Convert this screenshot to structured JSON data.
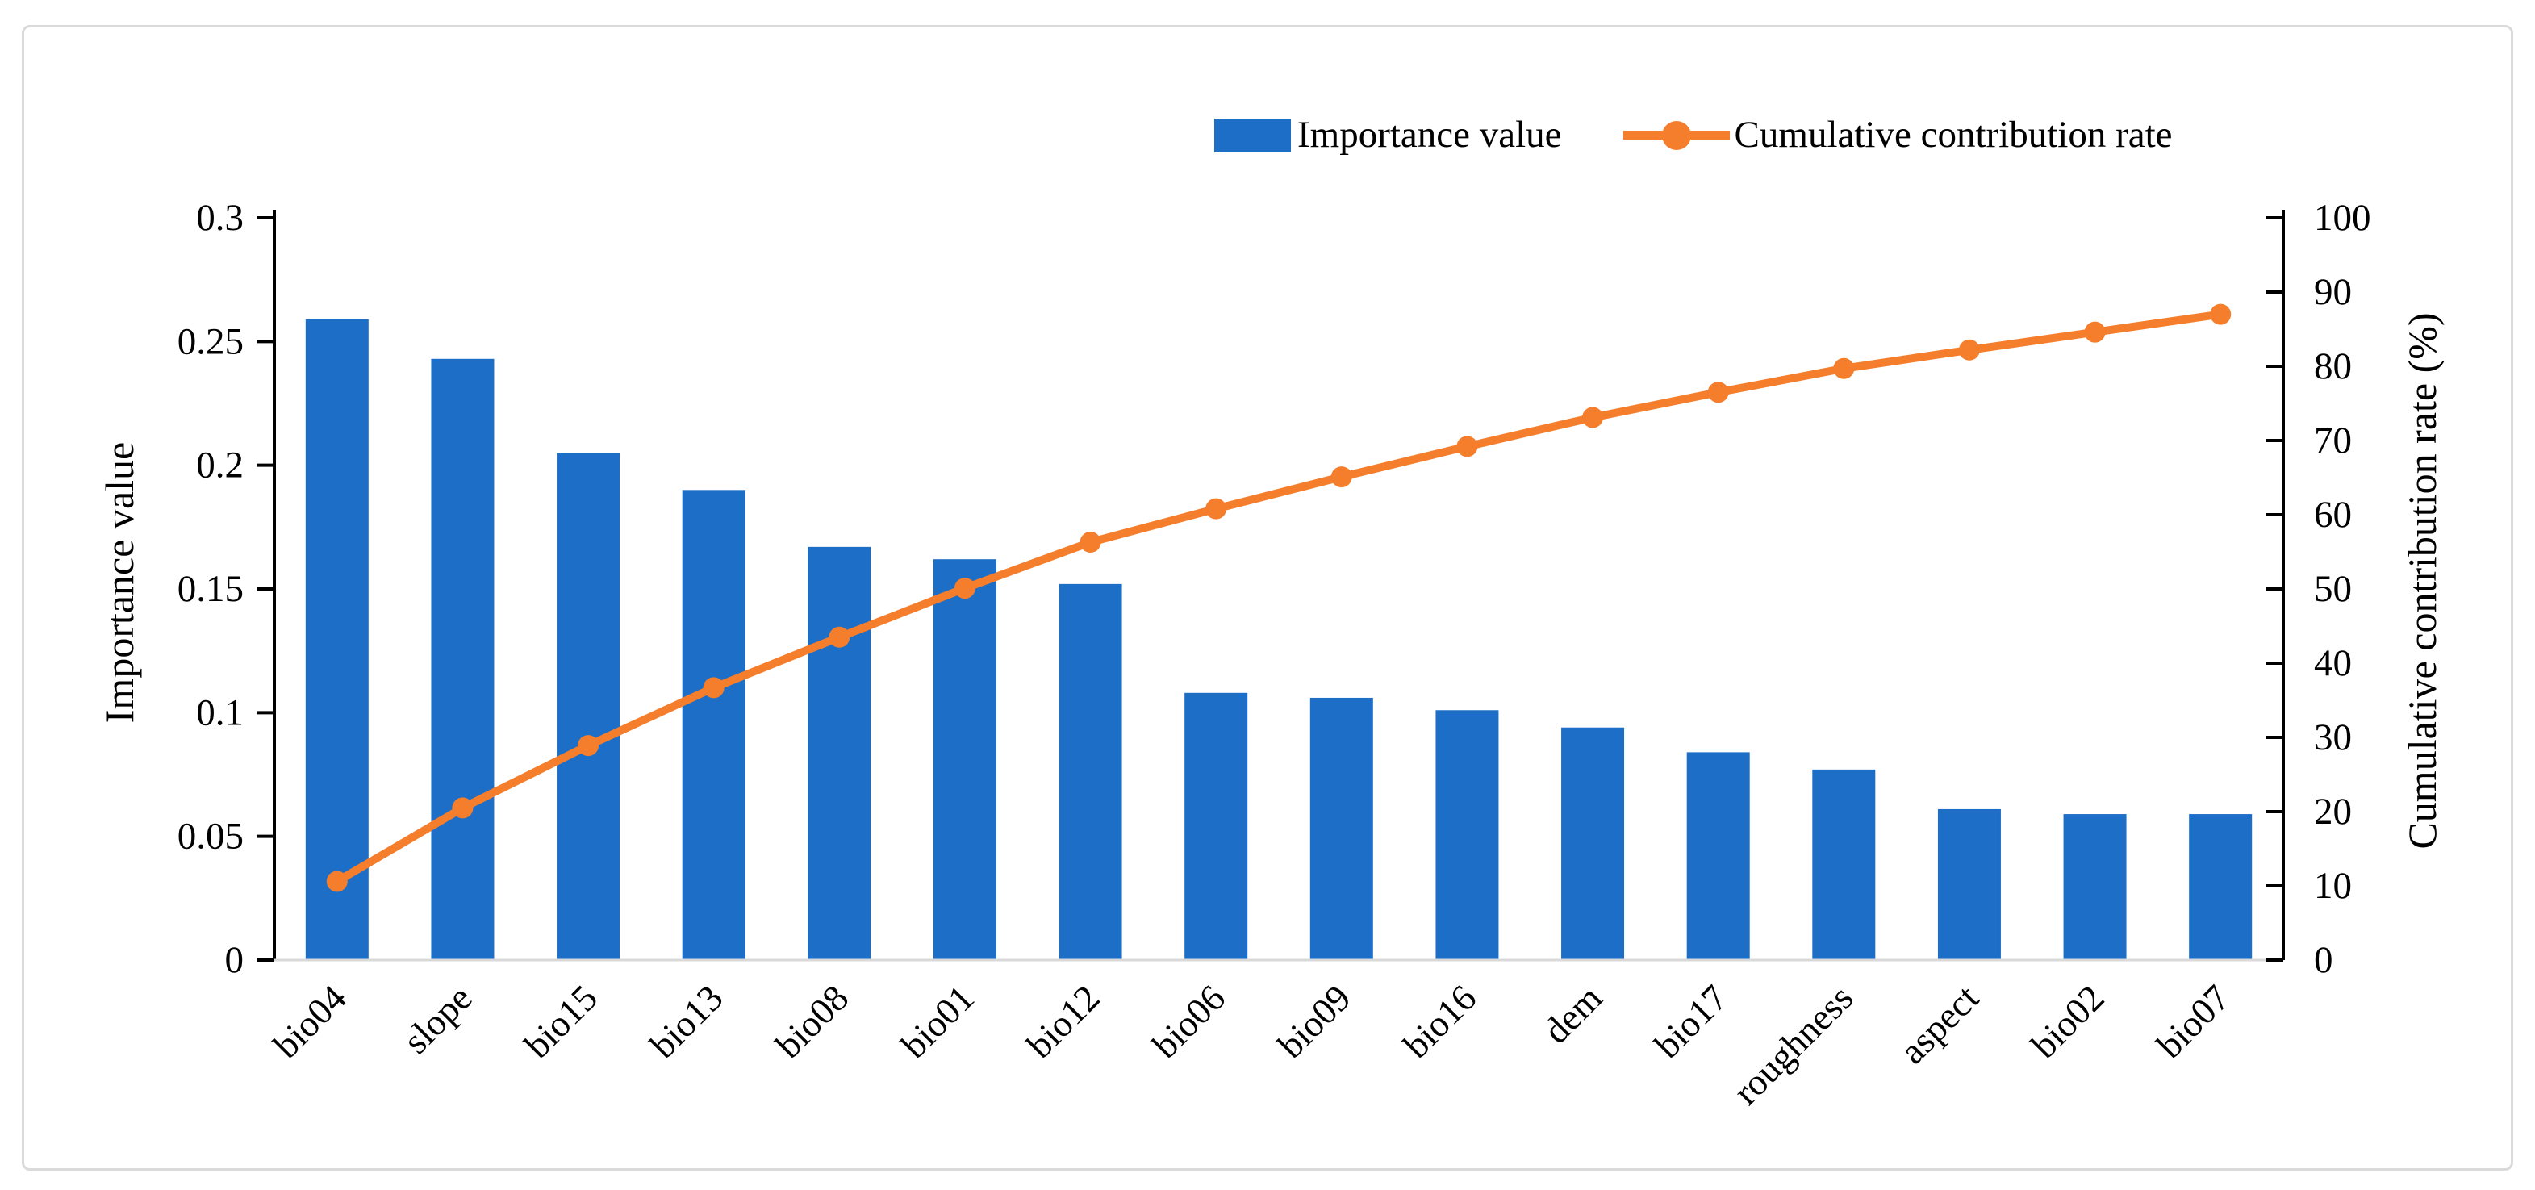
{
  "figure": {
    "background": "#ffffff",
    "frame_border_color": "#dadada",
    "axis_color": "#000000",
    "baseline_color": "#d9d9d9"
  },
  "chart_data": {
    "type": "bar",
    "subtype": "pareto-combo (bar + cumulative line)",
    "title": "",
    "categories": [
      "bio04",
      "slope",
      "bio15",
      "bio13",
      "bio08",
      "bio01",
      "bio12",
      "bio06",
      "bio09",
      "bio16",
      "dem",
      "bio17",
      "roughness",
      "aspect",
      "bio02",
      "bio07"
    ],
    "series": [
      {
        "name": "Importance value",
        "type": "bar",
        "axis": "left",
        "color": "#1d6ec6",
        "values": [
          0.259,
          0.243,
          0.205,
          0.19,
          0.167,
          0.162,
          0.152,
          0.108,
          0.106,
          0.101,
          0.094,
          0.084,
          0.077,
          0.061,
          0.059,
          0.059
        ]
      },
      {
        "name": "Cumulative contribution rate",
        "type": "line",
        "axis": "right",
        "color": "#f57e2c",
        "marker": "circle",
        "values": [
          10.6,
          20.5,
          28.9,
          36.7,
          43.5,
          50.1,
          56.3,
          60.8,
          65.1,
          69.2,
          73.1,
          76.5,
          79.7,
          82.2,
          84.6,
          87.0
        ]
      }
    ],
    "left_axis": {
      "label": "Importance value",
      "min": 0,
      "max": 0.3,
      "tick_step": 0.05,
      "ticks": [
        "0",
        "0.05",
        "0.1",
        "0.15",
        "0.2",
        "0.25",
        "0.3"
      ]
    },
    "right_axis": {
      "label": "Cumulative contribution rate (%)",
      "min": 0,
      "max": 100,
      "tick_step": 10,
      "ticks": [
        "0",
        "10",
        "20",
        "30",
        "40",
        "50",
        "60",
        "70",
        "80",
        "90",
        "100"
      ]
    },
    "x_axis": {
      "label": "",
      "tick_label_rotation_deg": -45
    },
    "legend": {
      "position": "top",
      "entries": [
        "Importance value",
        "Cumulative contribution rate"
      ]
    },
    "grid": "none"
  }
}
